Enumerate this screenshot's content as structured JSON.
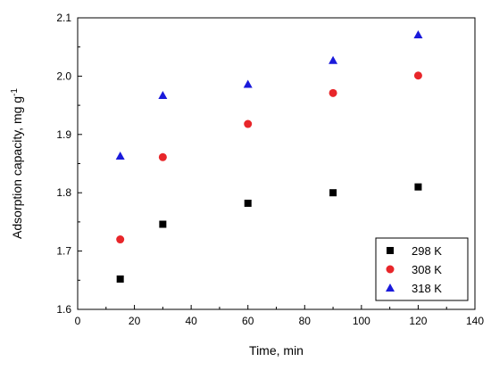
{
  "chart_data": {
    "type": "scatter",
    "title": "",
    "xlabel": "Time, min",
    "ylabel_main": "Adsorption capacity, mg g",
    "ylabel_sup": "-1",
    "xlim": [
      0,
      140
    ],
    "ylim": [
      1.6,
      2.1
    ],
    "xticks": [
      "0",
      "20",
      "40",
      "60",
      "80",
      "100",
      "120",
      "140"
    ],
    "yticks": [
      "1.6",
      "1.7",
      "1.8",
      "1.9",
      "2.0",
      "2.1"
    ],
    "grid": false,
    "legend_position": "bottom-right",
    "series": [
      {
        "name": "298 K",
        "marker": "square",
        "color": "#000000",
        "x": [
          15,
          30,
          60,
          90,
          120
        ],
        "y": [
          1.652,
          1.746,
          1.782,
          1.8,
          1.81
        ]
      },
      {
        "name": "308 K",
        "marker": "circle",
        "color": "#e8262a",
        "x": [
          15,
          30,
          60,
          90,
          120
        ],
        "y": [
          1.72,
          1.861,
          1.918,
          1.971,
          2.001
        ]
      },
      {
        "name": "318 K",
        "marker": "triangle",
        "color": "#1a1adb",
        "x": [
          15,
          30,
          60,
          90,
          120
        ],
        "y": [
          1.863,
          1.967,
          1.986,
          2.027,
          2.071
        ]
      }
    ]
  }
}
